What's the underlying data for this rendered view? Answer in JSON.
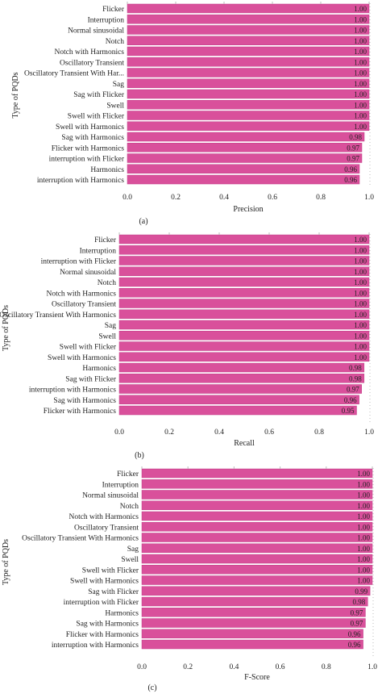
{
  "colors": {
    "bar": "#d9509b",
    "bar_edge": "#c23f89",
    "axis": "#333333",
    "tick_dots": "#bbbbbb"
  },
  "chart_data": [
    {
      "type": "bar",
      "orientation": "horizontal",
      "panel_label": "(a)",
      "xlabel": "Precision",
      "ylabel": "Type of PQDs",
      "xlim": [
        0,
        1
      ],
      "xticks": [
        "0.0",
        "0.2",
        "0.4",
        "0.6",
        "0.8",
        "1.0"
      ],
      "categories": [
        "Flicker",
        "Interruption",
        "Normal sinusoidal",
        "Notch",
        "Notch with Harmonics",
        "Oscillatory Transient",
        "Oscillatory Transient With Har...",
        "Sag",
        "Sag with Flicker",
        "Swell",
        "Swell with Flicker",
        "Swell with Harmonics",
        "Sag with Harmonics",
        "Flicker with Harmonics",
        "interruption with Flicker",
        "Harmonics",
        "interruption with Harmonics"
      ],
      "values": [
        1.0,
        1.0,
        1.0,
        1.0,
        1.0,
        1.0,
        1.0,
        1.0,
        1.0,
        1.0,
        1.0,
        1.0,
        0.98,
        0.97,
        0.97,
        0.96,
        0.96
      ],
      "value_labels": [
        "1.00",
        "1.00",
        "1.00",
        "1.00",
        "1.00",
        "1.00",
        "1.00",
        "1.00",
        "1.00",
        "1.00",
        "1.00",
        "1.00",
        "0.98",
        "0.97",
        "0.97",
        "0.96",
        "0.96"
      ]
    },
    {
      "type": "bar",
      "orientation": "horizontal",
      "panel_label": "(b)",
      "xlabel": "Recall",
      "ylabel": "Type of PQDs",
      "xlim": [
        0,
        1
      ],
      "xticks": [
        "0.0",
        "0.2",
        "0.4",
        "0.6",
        "0.8",
        "1.0"
      ],
      "categories": [
        "Flicker",
        "Interruption",
        "interruption with Flicker",
        "Normal sinusoidal",
        "Notch",
        "Notch with Harmonics",
        "Oscillatory Transient",
        "Oscillatory Transient With Harmonics",
        "Sag",
        "Swell",
        "Swell with Flicker",
        "Swell with Harmonics",
        "Harmonics",
        "Sag with Flicker",
        "interruption with Harmonics",
        "Sag with Harmonics",
        "Flicker with Harmonics"
      ],
      "values": [
        1.0,
        1.0,
        1.0,
        1.0,
        1.0,
        1.0,
        1.0,
        1.0,
        1.0,
        1.0,
        1.0,
        1.0,
        0.98,
        0.98,
        0.97,
        0.96,
        0.95
      ],
      "value_labels": [
        "1.00",
        "1.00",
        "1.00",
        "1.00",
        "1.00",
        "1.00",
        "1.00",
        "1.00",
        "1.00",
        "1.00",
        "1.00",
        "1.00",
        "0.98",
        "0.98",
        "0.97",
        "0.96",
        "0.95"
      ]
    },
    {
      "type": "bar",
      "orientation": "horizontal",
      "panel_label": "(c)",
      "xlabel": "F-Score",
      "ylabel": "Type of PQDs",
      "xlim": [
        0,
        1
      ],
      "xticks": [
        "0.0",
        "0.2",
        "0.4",
        "0.6",
        "0.8",
        "1.0"
      ],
      "categories": [
        "Flicker",
        "Interruption",
        "Normal sinusoidal",
        "Notch",
        "Notch with Harmonics",
        "Oscillatory Transient",
        "Oscillatory Transient With Harmonics",
        "Sag",
        "Swell",
        "Swell with Flicker",
        "Swell with Harmonics",
        "Sag with Flicker",
        "interruption with Flicker",
        "Harmonics",
        "Sag with Harmonics",
        "Flicker with Harmonics",
        "interruption with Harmonics"
      ],
      "values": [
        1.0,
        1.0,
        1.0,
        1.0,
        1.0,
        1.0,
        1.0,
        1.0,
        1.0,
        1.0,
        1.0,
        0.99,
        0.98,
        0.97,
        0.97,
        0.96,
        0.96
      ],
      "value_labels": [
        "1.00",
        "1.00",
        "1.00",
        "1.00",
        "1.00",
        "1.00",
        "1.00",
        "1.00",
        "1.00",
        "1.00",
        "1.00",
        "0.99",
        "0.98",
        "0.97",
        "0.97",
        "0.96",
        "0.96"
      ]
    }
  ]
}
